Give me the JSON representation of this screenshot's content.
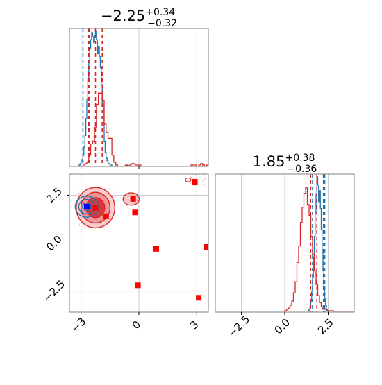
{
  "chart_data": {
    "type": "corner",
    "colors": {
      "series_a": "#1f77b4",
      "series_b": "#d62728",
      "series_b_fill": "#f4a6a6",
      "marker_blue": "#0000ff",
      "marker_red": "#ff0000",
      "grid": "#cccccc",
      "axis": "#808080"
    },
    "panels": [
      {
        "id": "hist_x",
        "type": "histogram",
        "title_main": "−2.25",
        "title_sup": "+0.34",
        "title_sub": "−0.32",
        "xlim": [
          -3.6,
          3.6
        ],
        "grid_x": [
          -3,
          0,
          3
        ],
        "series": [
          {
            "color_key": "series_a",
            "quantiles": [
              -2.9,
              -2.58
            ],
            "bins": {
              "x0": -3.2,
              "dx": 0.05,
              "counts": [
                0,
                0,
                1,
                2,
                3,
                5,
                8,
                14,
                22,
                34,
                48,
                62,
                74,
                84,
                90,
                95,
                92,
                88,
                93,
                96,
                90,
                80,
                85,
                78,
                70,
                58,
                44,
                30,
                18,
                10,
                6,
                4,
                2,
                2,
                1,
                1,
                0,
                0,
                0,
                0,
                0,
                0
              ]
            }
          },
          {
            "color_key": "series_b",
            "quantiles": [
              -2.6,
              -2.25,
              -1.9
            ],
            "bins": {
              "x0": -2.9,
              "dx": 0.1,
              "counts": [
                1,
                2,
                3,
                8,
                16,
                18,
                28,
                44,
                52,
                52,
                47,
                30,
                24,
                20,
                20,
                8,
                3,
                1,
                0,
                0,
                0,
                0,
                1,
                0,
                1,
                2,
                2,
                1,
                1,
                1,
                0,
                0,
                0,
                0,
                0,
                0,
                0,
                0,
                0,
                0,
                0,
                0,
                0,
                0,
                0,
                0,
                0,
                0,
                0,
                0,
                0,
                0,
                0,
                0,
                0,
                0,
                1,
                1,
                1,
                0,
                1,
                2,
                1,
                0,
                1,
                1,
                0,
                1,
                0
              ]
            }
          }
        ]
      },
      {
        "id": "scatter_xy",
        "type": "scatter",
        "xlim": [
          -3.6,
          3.6
        ],
        "ylim": [
          -3.6,
          3.6
        ],
        "xticks": [
          -3,
          0,
          3
        ],
        "xtick_labels": [
          "−3",
          "0",
          "3"
        ],
        "yticks": [
          -2.5,
          0.0,
          2.5
        ],
        "ytick_labels": [
          "−2.5",
          "0.0",
          "2.5"
        ],
        "grid_x": [
          -3,
          0,
          3
        ],
        "grid_y": [
          -2.5,
          0.0,
          2.5
        ],
        "blue_point": {
          "x": -2.7,
          "y": 1.9
        },
        "red_points": [
          {
            "x": -2.25,
            "y": 1.85
          },
          {
            "x": -1.7,
            "y": 1.4
          },
          {
            "x": -0.3,
            "y": 2.3
          },
          {
            "x": -0.2,
            "y": 1.6
          },
          {
            "x": 0.9,
            "y": -0.3
          },
          {
            "x": -0.05,
            "y": -2.2
          },
          {
            "x": 2.9,
            "y": 3.2
          },
          {
            "x": 3.1,
            "y": -2.85
          },
          {
            "x": 3.5,
            "y": -0.2
          }
        ]
      },
      {
        "id": "hist_y",
        "type": "histogram",
        "title_main": "1.85",
        "title_sup": "+0.38",
        "title_sub": "−0.36",
        "xlim": [
          -4.0,
          4.0
        ],
        "xticks": [
          -2.5,
          0.0,
          2.5
        ],
        "xtick_labels": [
          "−2.5",
          "0.0",
          "2.5"
        ],
        "grid_x": [
          -2.5,
          0.0,
          2.5
        ],
        "series": [
          {
            "color_key": "series_a",
            "quantiles": [
              1.6,
              2.3
            ],
            "bins": {
              "x0": 1.3,
              "dx": 0.05,
              "counts": [
                0,
                1,
                2,
                4,
                8,
                15,
                25,
                40,
                55,
                72,
                85,
                98,
                92,
                80,
                88,
                75,
                60,
                45,
                30,
                18,
                10,
                5,
                2,
                1,
                0,
                0
              ]
            }
          },
          {
            "color_key": "series_b",
            "quantiles": [
              1.49,
              1.85,
              2.23
            ],
            "bins": {
              "x0": 0.0,
              "dx": 0.1,
              "counts": [
                1,
                2,
                3,
                5,
                8,
                14,
                22,
                36,
                48,
                65,
                76,
                86,
                90,
                78,
                70,
                55,
                42,
                30,
                20,
                12,
                7,
                4,
                2,
                2,
                1,
                1,
                1,
                1,
                0,
                0,
                0,
                0,
                0,
                0,
                0,
                0,
                0,
                0,
                0,
                0
              ]
            }
          }
        ]
      }
    ]
  }
}
